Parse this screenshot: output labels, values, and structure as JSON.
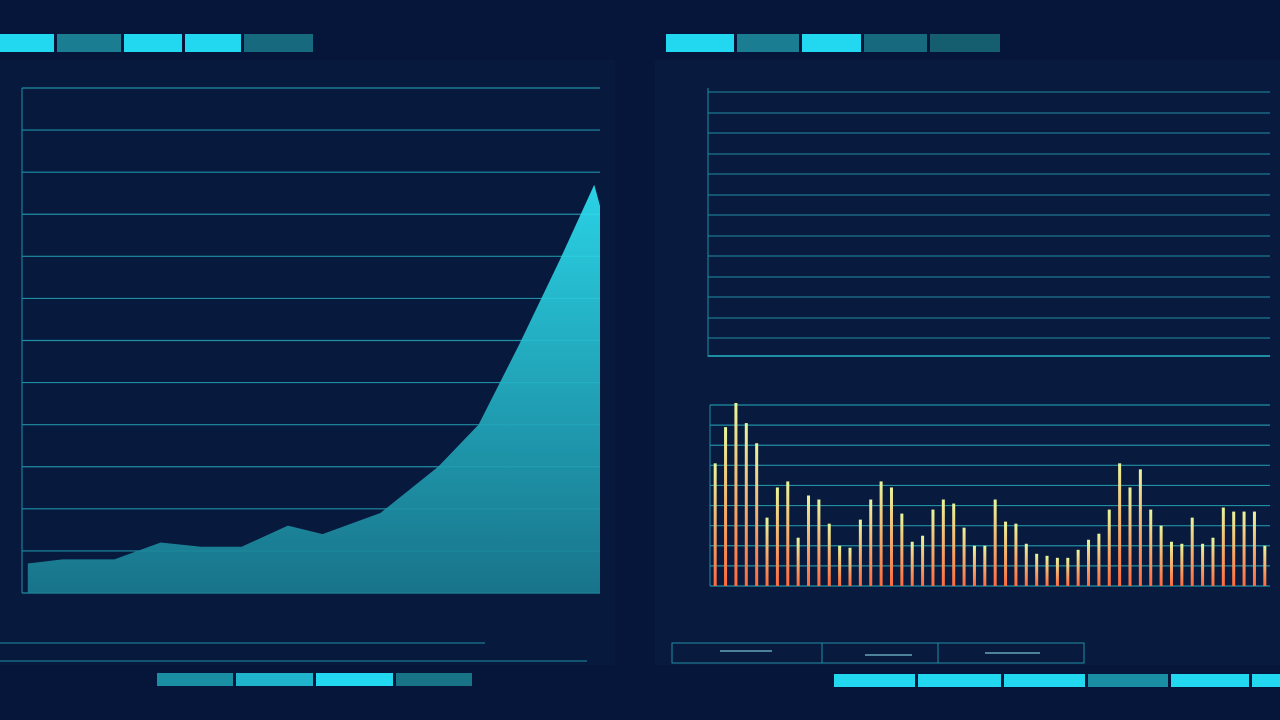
{
  "chart_data": [
    {
      "type": "area",
      "color": "#2ee6f7",
      "grid": true,
      "x": [
        1,
        7,
        16,
        24,
        31,
        38,
        46,
        52,
        62,
        72,
        79,
        86,
        93,
        99,
        100
      ],
      "values": [
        0.7,
        0.8,
        0.8,
        1.2,
        1.1,
        1.1,
        1.6,
        1.4,
        1.9,
        3,
        4,
        5.9,
        7.9,
        9.7,
        9.2
      ],
      "xlim": [
        0,
        100
      ],
      "ylim": [
        0,
        12
      ],
      "yticks": [
        0,
        1,
        2,
        3,
        4,
        5,
        6,
        7,
        8,
        9,
        10,
        11,
        12
      ]
    },
    {
      "type": "bar",
      "color": [
        "#ff6a3d",
        "#e9f59a"
      ],
      "grid": true,
      "values": [
        6.1,
        7.9,
        9.1,
        8.1,
        7.1,
        3.4,
        4.9,
        5.2,
        2.4,
        4.5,
        4.3,
        3.1,
        2.0,
        1.9,
        3.3,
        4.3,
        5.2,
        4.9,
        3.6,
        2.2,
        2.5,
        3.8,
        4.3,
        4.1,
        2.9,
        2.0,
        2.0,
        4.3,
        3.2,
        3.1,
        2.1,
        1.6,
        1.5,
        1.4,
        1.4,
        1.8,
        2.3,
        2.6,
        3.8,
        6.1,
        4.9,
        5.8,
        3.8,
        3.0,
        2.2,
        2.1,
        3.4,
        2.1,
        2.4,
        3.9,
        3.7,
        3.7,
        3.7,
        2.0
      ],
      "ylim": [
        0,
        9
      ],
      "yticks": [
        0,
        1,
        2,
        3,
        4,
        5,
        6,
        7,
        8,
        9
      ]
    }
  ]
}
